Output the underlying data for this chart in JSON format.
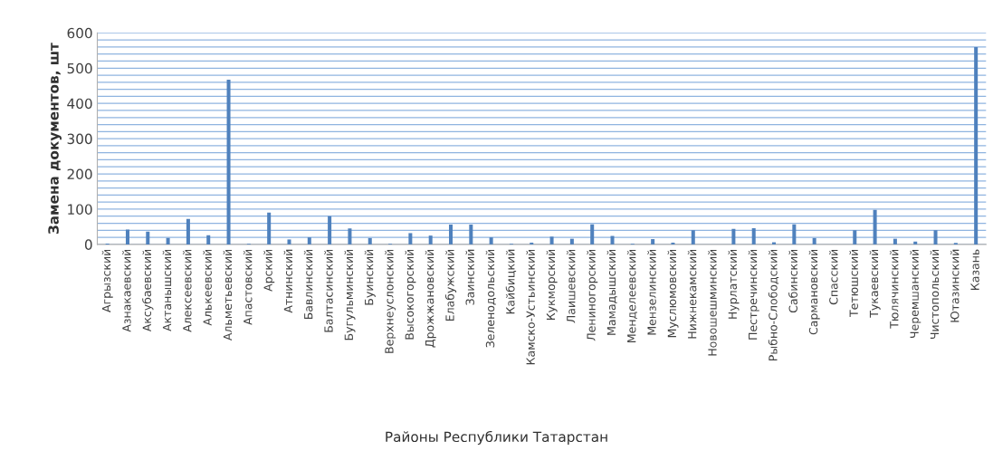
{
  "chart_data": {
    "type": "bar",
    "xlabel": "Районы Республики Татарстан",
    "ylabel": "Замена документов, шт",
    "categories": [
      "Агрызский",
      "Азнакаевский",
      "Аксубаевский",
      "Актанышский",
      "Алексеевский",
      "Алькеевский",
      "Альметьевский",
      "Апастовский",
      "Арский",
      "Атнинский",
      "Бавлинский",
      "Балтасинский",
      "Бугульминский",
      "Буинский",
      "Верхнеуслонский",
      "Высокогорский",
      "Дрожжановский",
      "Елабужский",
      "Заинский",
      "Зеленодольский",
      "Кайбицкий",
      "Камско-Устьинский",
      "Кукморский",
      "Лаишевский",
      "Лениногорский",
      "Мамадышский",
      "Менделеевский",
      "Мензелинский",
      "Муслюмовский",
      "Нижнекамский",
      "Новошешминский",
      "Нурлатский",
      "Пестречинский",
      "Рыбно-Слободский",
      "Сабинский",
      "Сармановский",
      "Спасский",
      "Тетюшский",
      "Тукаевский",
      "Тюлячинский",
      "Черемшанский",
      "Чистопольский",
      "Ютазинский",
      "Казань"
    ],
    "values": [
      2,
      42,
      36,
      18,
      72,
      26,
      467,
      2,
      90,
      14,
      20,
      80,
      45,
      18,
      2,
      32,
      25,
      56,
      56,
      20,
      2,
      5,
      22,
      16,
      57,
      24,
      2,
      15,
      5,
      40,
      0,
      44,
      46,
      6,
      57,
      18,
      0,
      40,
      98,
      16,
      8,
      40,
      4,
      560
    ],
    "color": "#4f81bd",
    "ylim": [
      0,
      600
    ],
    "yticks": [
      0,
      {
        "value": 20,
        "label": null
      },
      {
        "value": 40,
        "label": null
      },
      {
        "value": 60,
        "label": null
      },
      {
        "value": 80,
        "label": null
      },
      100,
      {
        "value": 120,
        "label": null
      },
      {
        "value": 140,
        "label": null
      },
      {
        "value": 160,
        "label": null
      },
      {
        "value": 180,
        "label": null
      },
      200,
      {
        "value": 220,
        "label": null
      },
      {
        "value": 240,
        "label": null
      },
      {
        "value": 260,
        "label": null
      },
      {
        "value": 280,
        "label": null
      },
      300,
      {
        "value": 320,
        "label": null
      },
      {
        "value": 340,
        "label": null
      },
      {
        "value": 360,
        "label": null
      },
      {
        "value": 380,
        "label": null
      },
      400,
      {
        "value": 420,
        "label": null
      },
      {
        "value": 440,
        "label": null
      },
      {
        "value": 460,
        "label": null
      },
      {
        "value": 480,
        "label": null
      },
      500,
      {
        "value": 520,
        "label": null
      },
      {
        "value": 540,
        "label": null
      },
      {
        "value": 560,
        "label": null
      },
      {
        "value": 580,
        "label": null
      },
      600
    ],
    "grid": "y"
  }
}
